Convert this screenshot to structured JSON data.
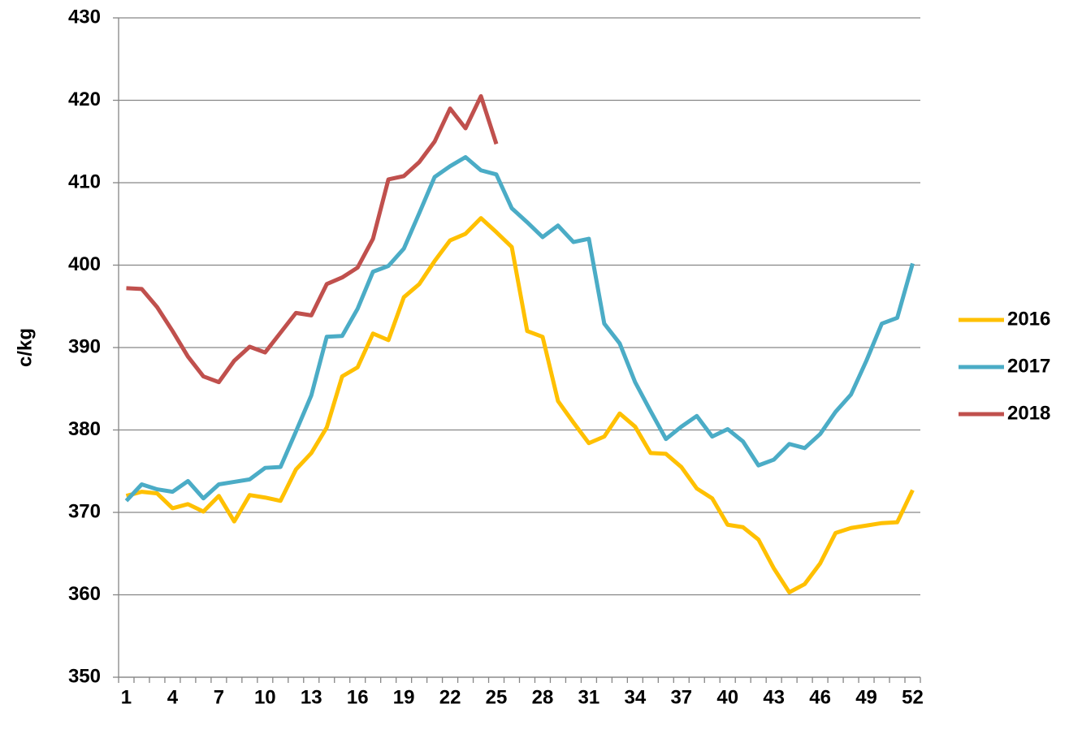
{
  "chart_data": {
    "type": "line",
    "y_label": "c/kg",
    "categories": [
      1,
      null,
      null,
      4,
      null,
      null,
      7,
      null,
      null,
      10,
      null,
      null,
      13,
      null,
      null,
      16,
      null,
      null,
      19,
      null,
      null,
      22,
      null,
      null,
      25,
      null,
      null,
      28,
      null,
      null,
      31,
      null,
      null,
      34,
      null,
      null,
      37,
      null,
      null,
      40,
      null,
      null,
      43,
      null,
      null,
      46,
      null,
      null,
      49,
      null,
      null,
      52
    ],
    "series": [
      {
        "name": "2016",
        "color": "#FFC000",
        "values": [
          372,
          372.5,
          372.3,
          370.5,
          371,
          370.1,
          372,
          368.9,
          372.1,
          371.8,
          371.4,
          375.2,
          377.2,
          380.3,
          386.5,
          387.6,
          391.7,
          390.9,
          396.1,
          397.7,
          400.5,
          403,
          403.8,
          405.7,
          404,
          402.2,
          392,
          391.3,
          383.5,
          380.9,
          378.4,
          379.2,
          382,
          380.4,
          377.2,
          377.1,
          375.5,
          372.9,
          371.7,
          368.5,
          368.2,
          366.7,
          363.2,
          360.3,
          361.3,
          363.8,
          367.5,
          368.1,
          368.4,
          368.7,
          368.8,
          372.7
        ]
      },
      {
        "name": "2017",
        "color": "#4BACC6",
        "values": [
          371.4,
          373.4,
          372.8,
          372.5,
          373.8,
          371.7,
          373.4,
          373.7,
          374,
          375.4,
          375.5,
          379.8,
          384.2,
          391.3,
          391.4,
          394.7,
          399.2,
          399.9,
          402,
          406.3,
          410.7,
          412,
          413.1,
          411.5,
          411,
          406.9,
          405.2,
          403.4,
          404.8,
          402.8,
          403.2,
          392.9,
          390.5,
          385.8,
          382.3,
          378.9,
          380.4,
          381.7,
          379.2,
          380.1,
          378.6,
          375.7,
          376.4,
          378.3,
          377.8,
          379.5,
          382.2,
          384.3,
          388.4,
          392.9,
          393.6,
          400.2
        ]
      },
      {
        "name": "2018",
        "color": "#C0504D",
        "values": [
          397.2,
          397.1,
          394.9,
          392,
          388.9,
          386.5,
          385.8,
          388.4,
          390.1,
          389.4,
          391.8,
          394.2,
          393.9,
          397.7,
          398.5,
          399.7,
          403.2,
          410.4,
          410.8,
          412.5,
          415,
          419,
          416.6,
          420.5,
          414.7,
          null,
          null,
          null,
          null,
          null,
          null,
          null,
          null,
          null,
          null,
          null,
          null,
          null,
          null,
          null,
          null,
          null,
          null,
          null,
          null,
          null,
          null,
          null,
          null,
          null,
          null,
          null
        ]
      }
    ],
    "ylim": [
      350,
      430
    ],
    "yticks": [
      350,
      360,
      370,
      380,
      390,
      400,
      410,
      420,
      430
    ],
    "grid": true,
    "legend": "right"
  }
}
